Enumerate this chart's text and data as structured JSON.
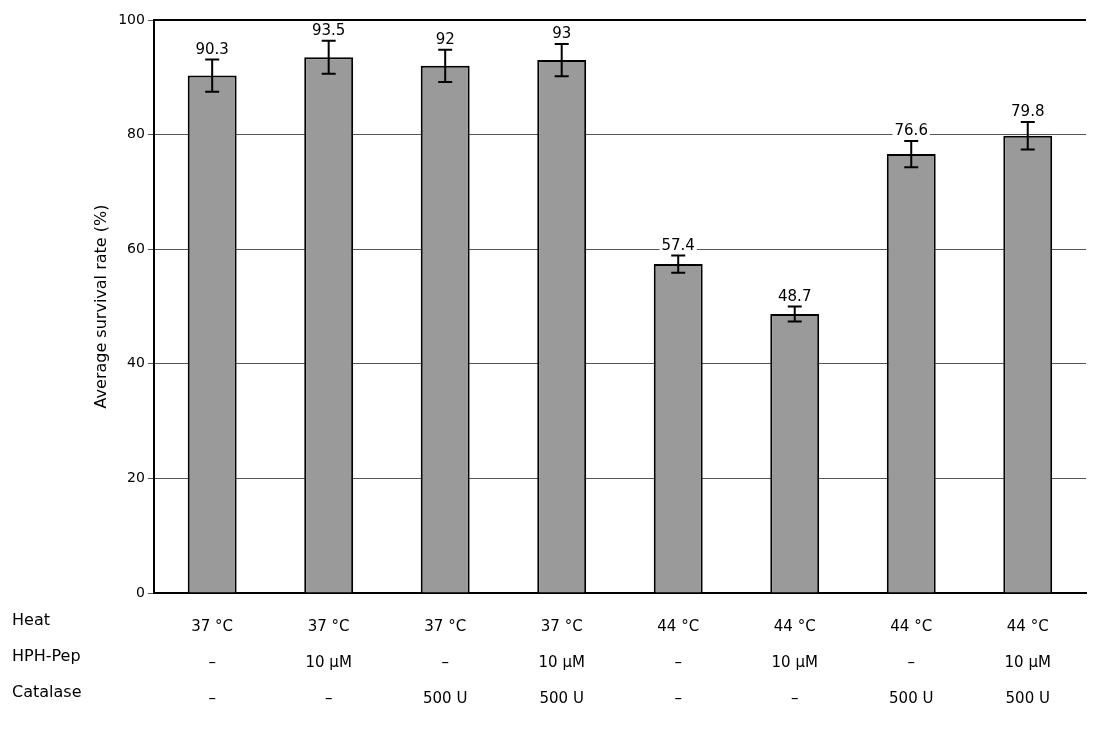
{
  "chart_data": {
    "type": "bar",
    "ylabel": "Average survival rate (%)",
    "categories": [
      "37 °C\n–\n–",
      "37 °C\n10 μM\n–",
      "37 °C\n–\n500 U",
      "37 °C\n10 μM\n500 U",
      "44 °C\n–\n–",
      "44 °C\n10 μM\n–",
      "44 °C\n–\n500 U",
      "44 °C\n10 μM\n500 U"
    ],
    "values": [
      90.3,
      93.5,
      92,
      93,
      57.4,
      48.7,
      76.6,
      79.8
    ],
    "errors": [
      2.8,
      2.9,
      2.8,
      2.8,
      1.5,
      1.3,
      2.3,
      2.4
    ],
    "color": "#9a9a9a",
    "ylim": [
      0,
      100
    ],
    "yticks": [
      0,
      20,
      40,
      60,
      80,
      100
    ],
    "grid": "y",
    "data_labels": true,
    "annotations": [
      "Heat",
      "HPH-Pep",
      "Catalase"
    ]
  }
}
